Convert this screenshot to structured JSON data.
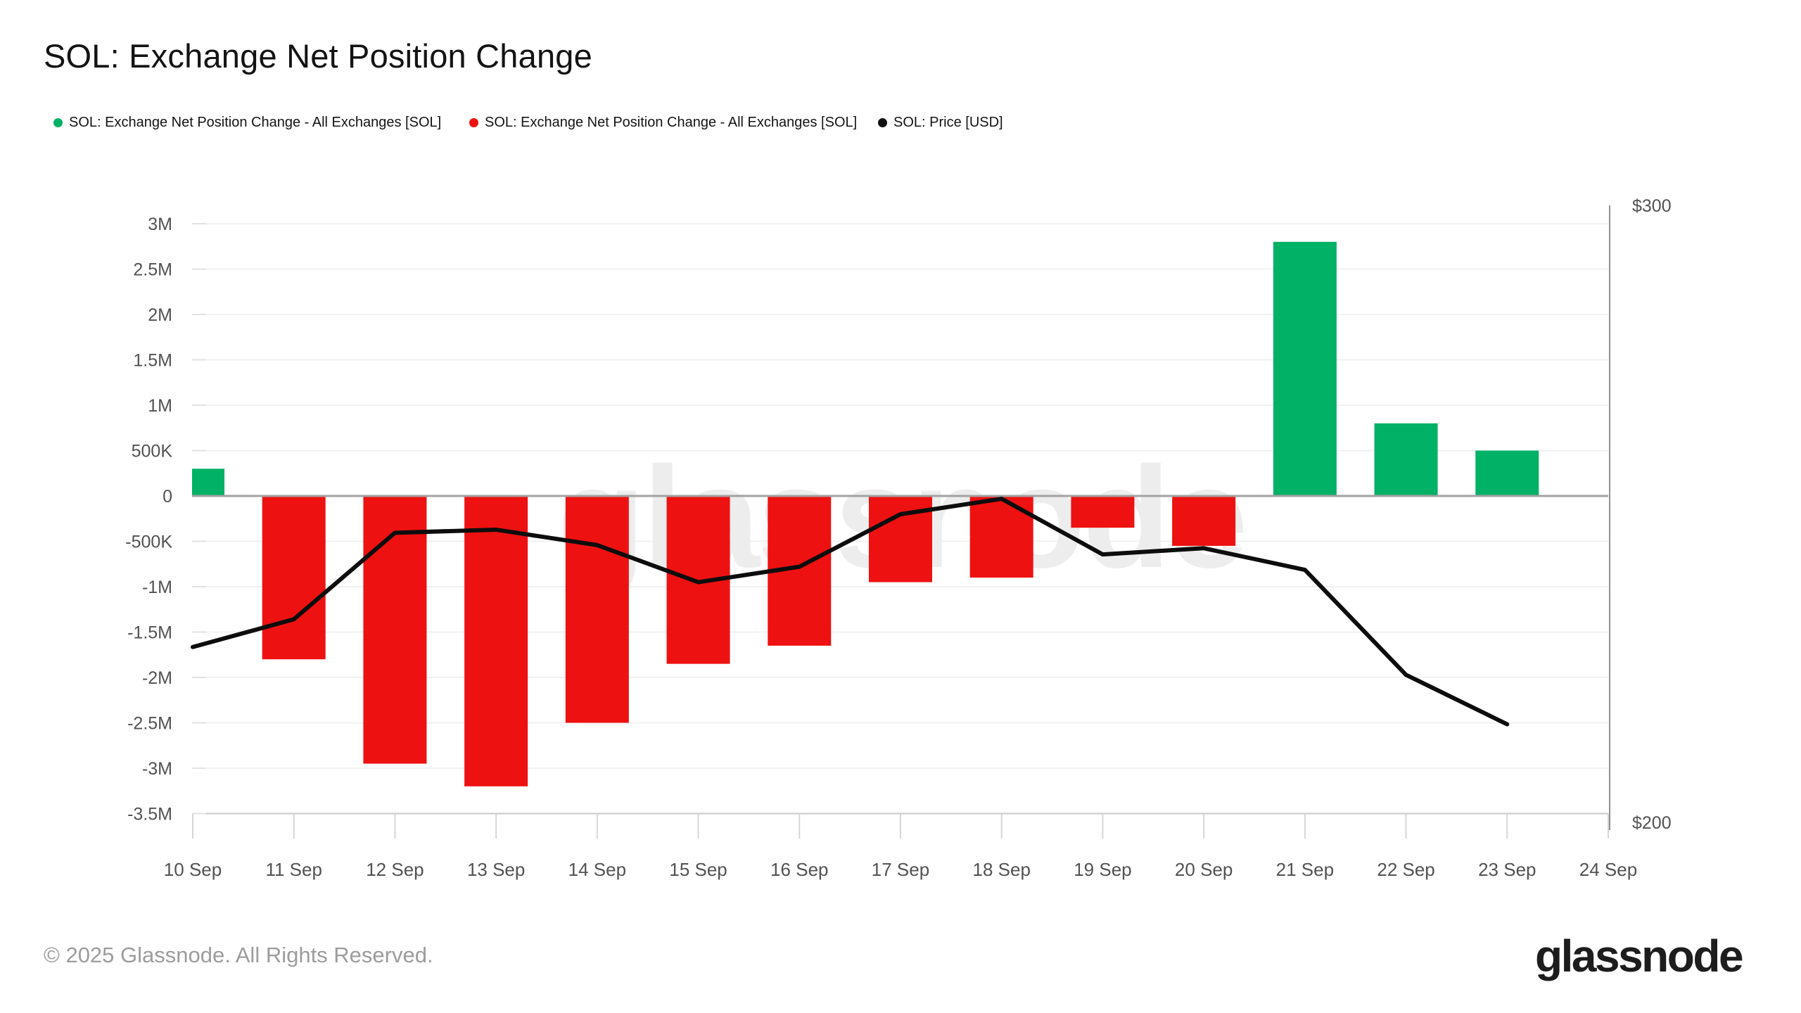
{
  "title": "SOL: Exchange Net Position Change",
  "legend": {
    "items": [
      {
        "label": "SOL: Exchange Net Position Change - All Exchanges [SOL]",
        "color": "#00b166",
        "icon": "green-dot"
      },
      {
        "label": "SOL: Exchange Net Position Change - All Exchanges [SOL]",
        "color": "#ee1111",
        "icon": "red-dot"
      },
      {
        "label": "SOL: Price [USD]",
        "color": "#111111",
        "icon": "black-dot"
      }
    ]
  },
  "watermark": {
    "text": "glassnode"
  },
  "footer": {
    "copyright": "© 2025 Glassnode. All Rights Reserved.",
    "logo_text": "glassnode"
  },
  "colors": {
    "positive": "#00b166",
    "negative": "#ee1111",
    "price_line": "#0d0d0d",
    "axis_label": "#525252",
    "watermark": "#ededed"
  },
  "chart_data": {
    "type": "bar",
    "subtype": "bar-with-line-overlay",
    "title": "SOL: Exchange Net Position Change",
    "categories": [
      "10 Sep",
      "11 Sep",
      "12 Sep",
      "13 Sep",
      "14 Sep",
      "15 Sep",
      "16 Sep",
      "17 Sep",
      "18 Sep",
      "19 Sep",
      "20 Sep",
      "21 Sep",
      "22 Sep",
      "23 Sep",
      "24 Sep"
    ],
    "series": [
      {
        "name": "SOL: Exchange Net Position Change - All Exchanges [SOL]",
        "type": "bar",
        "unit": "SOL",
        "positive_color": "#00b166",
        "negative_color": "#ee1111",
        "values": [
          300000,
          -1800000,
          -2950000,
          -3200000,
          -2500000,
          -1850000,
          -1650000,
          -950000,
          -900000,
          -350000,
          -550000,
          2800000,
          800000,
          500000,
          null
        ]
      },
      {
        "name": "SOL: Price [USD]",
        "type": "line",
        "unit": "USD",
        "color": "#0d0d0d",
        "values": [
          228.5,
          233,
          247,
          247.5,
          245,
          239,
          241.5,
          250,
          252.5,
          243.5,
          244.5,
          241,
          224,
          216,
          null
        ]
      }
    ],
    "left_axis": {
      "tick_labels": [
        "3M",
        "2.5M",
        "2M",
        "1.5M",
        "1M",
        "500K",
        "0",
        "-500K",
        "-1M",
        "-1.5M",
        "-2M",
        "-2.5M",
        "-3M",
        "-3.5M"
      ],
      "tick_values_millions": [
        3,
        2.5,
        2,
        1.5,
        1,
        0.5,
        0,
        -0.5,
        -1,
        -1.5,
        -2,
        -2.5,
        -3,
        -3.5
      ],
      "range_millions": [
        -3.5,
        3
      ]
    },
    "right_axis": {
      "tick_labels": [
        "$300",
        "$200"
      ],
      "tick_values": [
        300,
        200
      ],
      "range": [
        200,
        300
      ]
    },
    "grid": "horizontal",
    "legend_position": "top"
  }
}
